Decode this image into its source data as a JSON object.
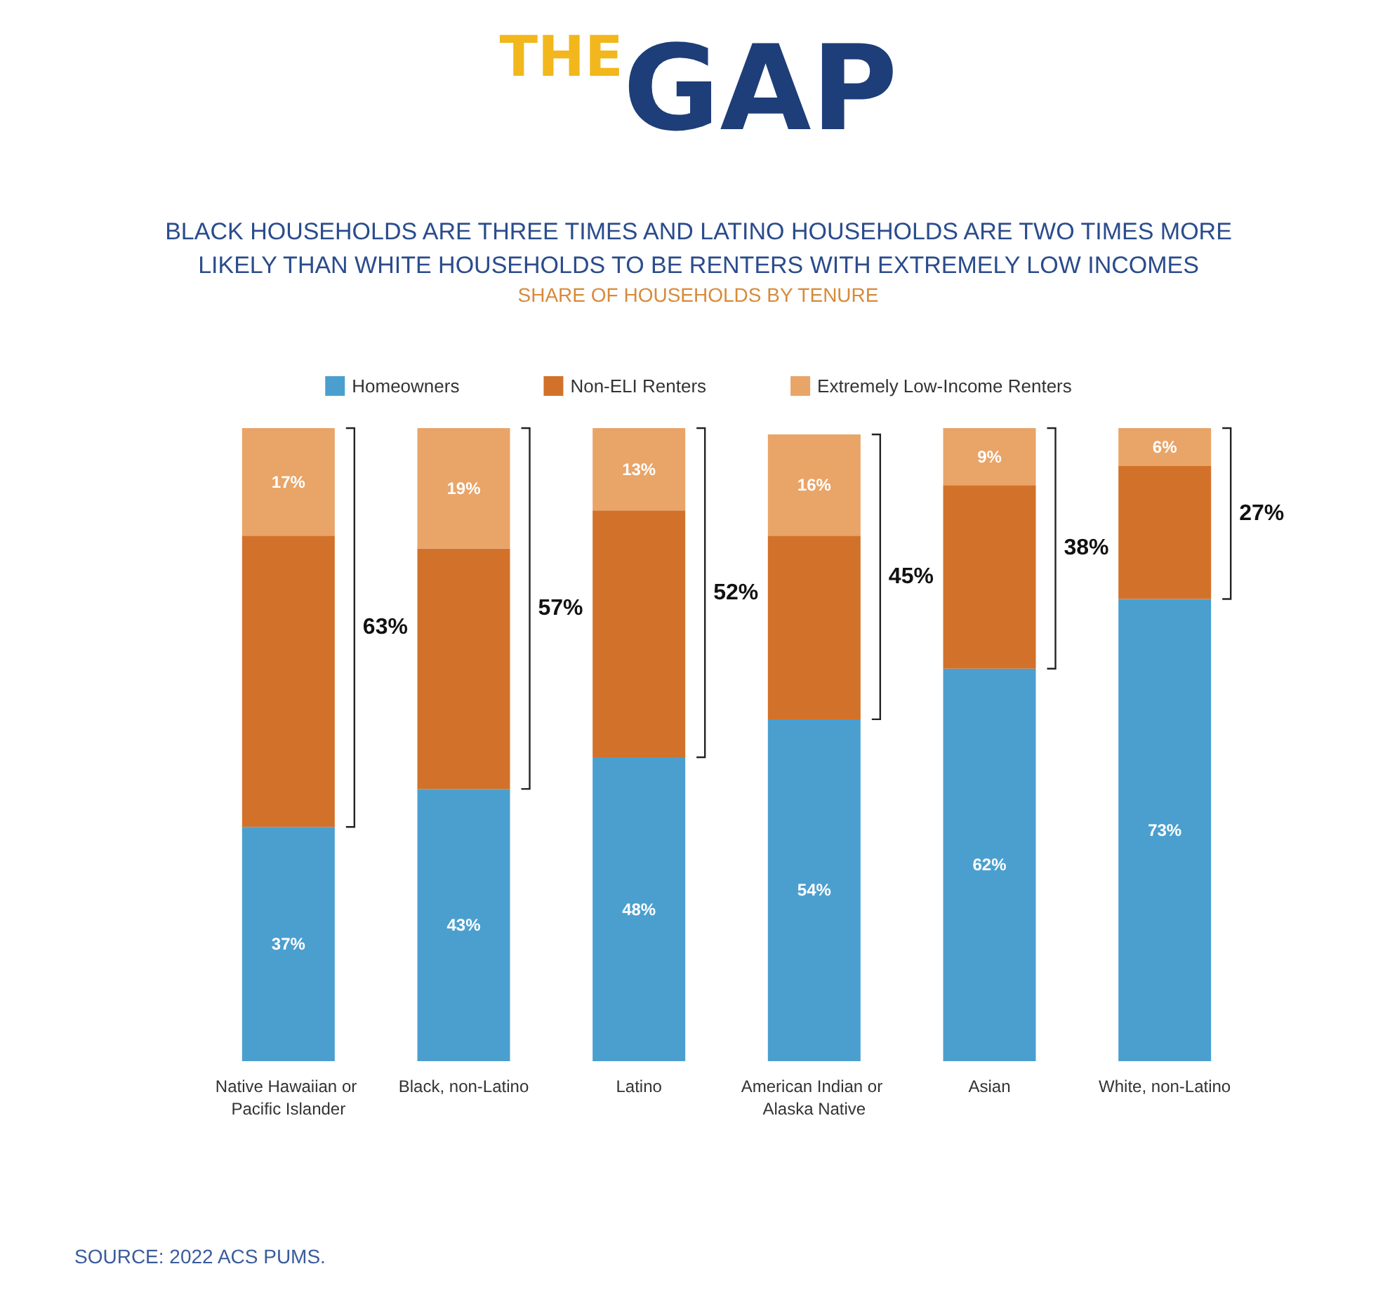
{
  "chart_data": {
    "type": "bar",
    "title": "THEGAP",
    "subtitle": "BLACK HOUSEHOLDS ARE THREE TIMES AND LATINO HOUSEHOLDS ARE TWO TIMES MORE\nLIKELY THAN WHITE HOUSEHOLDS TO BE RENTERS WITH EXTREMELY LOW INCOMES",
    "annotations": [
      "SHARE OF HOUSEHOLDS BY TENURE",
      "SOURCE: 2022 ACS PUMS.",
      "63%",
      "57%",
      "52%",
      "45%",
      "38%",
      "27%"
    ],
    "categories": [
      "Native Hawaiian or Pacific Islander",
      "Black, non-Latino",
      "Latino",
      "American Indian or Alaska Native",
      "Asian",
      "White, non-Latino"
    ],
    "stacked": true,
    "legend": "top",
    "series": [
      {
        "name": "Homeowners",
        "color": "#4b9fcf",
        "values": [
          37,
          43,
          48,
          54,
          62,
          73
        ],
        "value_labels": [
          "37%",
          "43%",
          "48%",
          "54%",
          "62%",
          "73%"
        ]
      },
      {
        "name": "Non-ELI Renters",
        "color": "#d2722a",
        "values": [
          46,
          38,
          39,
          29,
          29,
          21
        ]
      },
      {
        "name": "Extremely Low-Income Renters",
        "color": "#e9a468",
        "values": [
          17,
          19,
          13,
          16,
          9,
          6
        ],
        "value_labels": [
          "17%",
          "19%",
          "13%",
          "16%",
          "9%",
          "6%"
        ]
      }
    ]
  }
}
